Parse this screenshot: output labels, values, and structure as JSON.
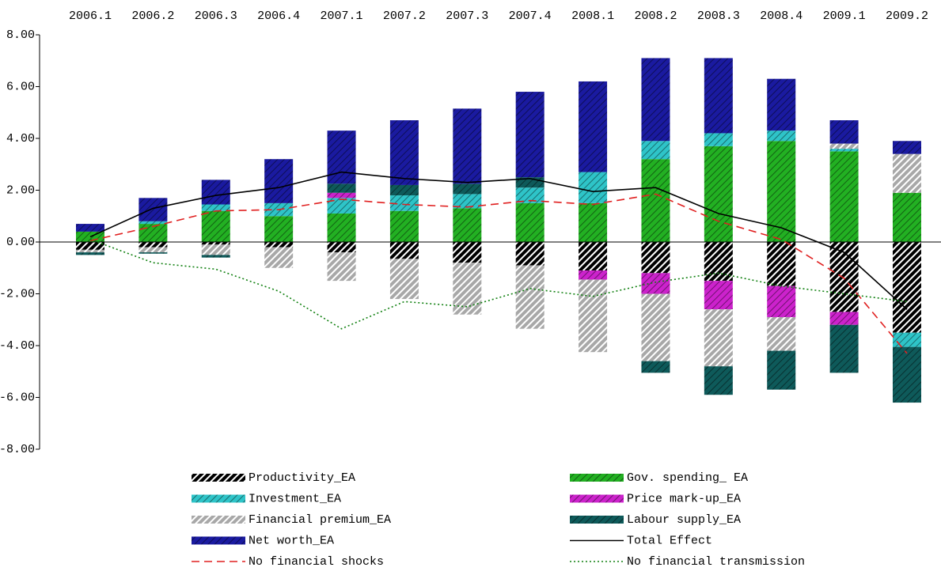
{
  "chart_data": {
    "type": "bar",
    "categories": [
      "2006.1",
      "2006.2",
      "2006.3",
      "2006.4",
      "2007.1",
      "2007.2",
      "2007.3",
      "2007.4",
      "2008.1",
      "2008.2",
      "2008.3",
      "2008.4",
      "2009.1",
      "2009.2"
    ],
    "ylim": [
      -8,
      8
    ],
    "yticks": [
      {
        "value": 8,
        "label": "8.00"
      },
      {
        "value": 6,
        "label": "6.00"
      },
      {
        "value": 4,
        "label": "4.00"
      },
      {
        "value": 2,
        "label": "2.00"
      },
      {
        "value": 0,
        "label": "0.00"
      },
      {
        "value": -2,
        "label": "-2.00"
      },
      {
        "value": -4,
        "label": "-4.00"
      },
      {
        "value": -6,
        "label": "-6.00"
      },
      {
        "value": -8,
        "label": "-8.00"
      }
    ],
    "series": [
      {
        "name": "Productivity_EA",
        "kind": "bar",
        "color": "#000000",
        "values": [
          -0.3,
          -0.2,
          -0.1,
          -0.2,
          -0.4,
          -0.65,
          -0.8,
          -0.9,
          -1.1,
          -1.2,
          -1.5,
          -1.7,
          -2.7,
          -3.5
        ]
      },
      {
        "name": "Gov. spending_ EA",
        "kind": "bar",
        "color": "#22b022",
        "values": [
          0.4,
          0.7,
          1.2,
          1.0,
          1.1,
          1.2,
          1.3,
          1.5,
          1.5,
          3.2,
          3.7,
          3.9,
          3.5,
          1.9
        ]
      },
      {
        "name": "Investment_EA",
        "kind": "bar",
        "color": "#2ec4c8",
        "values": [
          0,
          0.1,
          0.25,
          0.5,
          0.6,
          0.6,
          0.55,
          0.6,
          1.2,
          0.7,
          0.5,
          0.4,
          0.1,
          -0.55
        ]
      },
      {
        "name": "Price mark-up_EA",
        "kind": "bar",
        "color": "#cc22cc",
        "values": [
          0,
          0,
          0,
          0,
          0.2,
          0,
          0,
          0,
          -0.35,
          -0.8,
          -1.1,
          -1.2,
          -0.5,
          0
        ]
      },
      {
        "name": "Financial premium_EA",
        "kind": "bar",
        "color": "#a8a8a8",
        "values": [
          -0.1,
          -0.2,
          -0.4,
          -0.8,
          -1.1,
          -1.55,
          -2.0,
          -2.45,
          -2.8,
          -2.6,
          -2.2,
          -1.3,
          0.2,
          1.5
        ]
      },
      {
        "name": "Labour supply_EA",
        "kind": "bar",
        "color": "#0e5a5a",
        "values": [
          -0.1,
          -0.05,
          -0.1,
          0,
          0.35,
          0.4,
          0.4,
          0.4,
          0,
          -0.45,
          -1.1,
          -1.5,
          -1.85,
          -2.15
        ]
      },
      {
        "name": "Net worth_EA",
        "kind": "bar",
        "color": "#1a1aa0",
        "values": [
          0.3,
          0.9,
          0.95,
          1.7,
          2.05,
          2.5,
          2.9,
          3.3,
          3.5,
          3.2,
          2.9,
          2.0,
          0.9,
          0.5
        ]
      },
      {
        "name": "Total Effect",
        "kind": "line",
        "color": "#000000",
        "dash": "none",
        "values": [
          0.2,
          1.3,
          1.8,
          2.1,
          2.7,
          2.45,
          2.3,
          2.45,
          1.95,
          2.1,
          1.1,
          0.55,
          -0.4,
          -2.6
        ]
      },
      {
        "name": "No financial shocks",
        "kind": "line",
        "color": "#e02020",
        "dash": "10,6",
        "values": [
          0.05,
          0.6,
          1.2,
          1.25,
          1.65,
          1.45,
          1.35,
          1.6,
          1.45,
          1.85,
          0.8,
          0.1,
          -1.4,
          -4.3
        ]
      },
      {
        "name": "No financial transmission",
        "kind": "line",
        "color": "#108010",
        "dash": "2,3",
        "values": [
          0.1,
          -0.8,
          -1.05,
          -1.9,
          -3.35,
          -2.3,
          -2.5,
          -1.8,
          -2.1,
          -1.55,
          -1.2,
          -1.7,
          -2.0,
          -2.3
        ]
      }
    ]
  }
}
